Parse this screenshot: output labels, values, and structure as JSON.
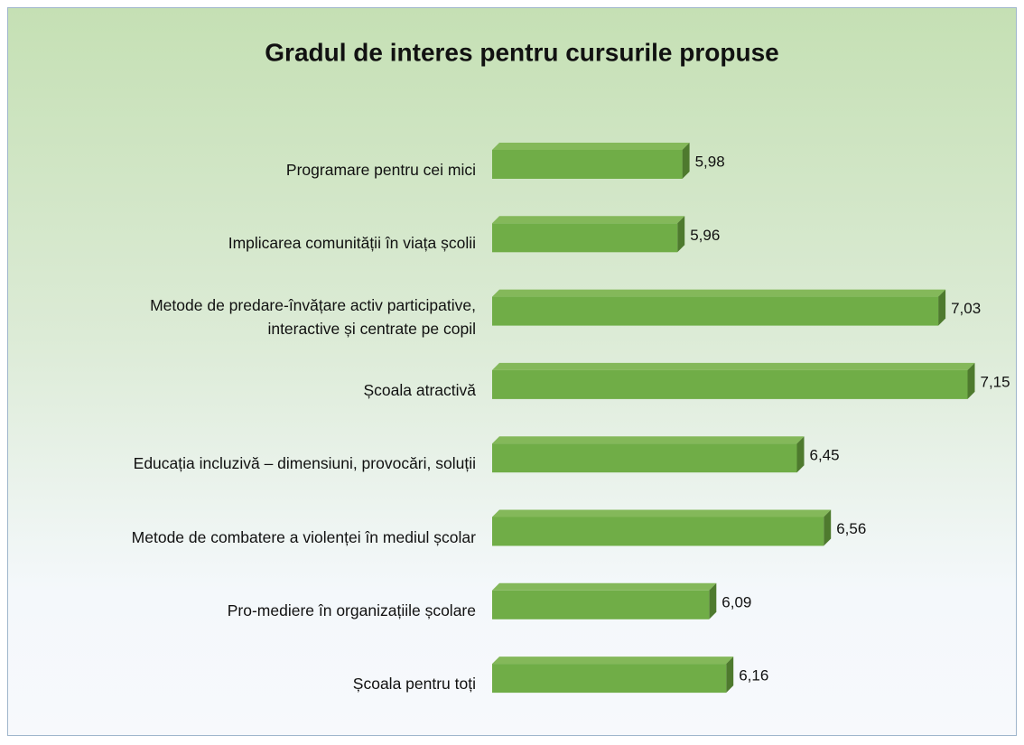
{
  "chart_data": {
    "type": "bar",
    "orientation": "horizontal",
    "title": "Gradul de interes pentru cursurile propuse",
    "categories": [
      "Programare pentru cei mici",
      "Implicarea comunității în viața școlii",
      "Metode de predare-învățare activ participative,\ninteractive și centrate pe copil",
      "Școala atractivă",
      "Educația incluzivă – dimensiuni, provocări, soluții",
      "Metode de combatere a violenței în mediul școlar",
      "Pro-mediere în organizațiile școlare",
      "Școala pentru toți"
    ],
    "values": [
      5.98,
      5.96,
      7.03,
      7.15,
      6.45,
      6.56,
      6.09,
      6.16
    ],
    "value_labels": [
      "5,98",
      "5,96",
      "7,03",
      "7,15",
      "6,45",
      "6,56",
      "6,09",
      "6,16"
    ],
    "color": "#70ad47",
    "xlim": [
      5.2,
      7.2
    ]
  }
}
